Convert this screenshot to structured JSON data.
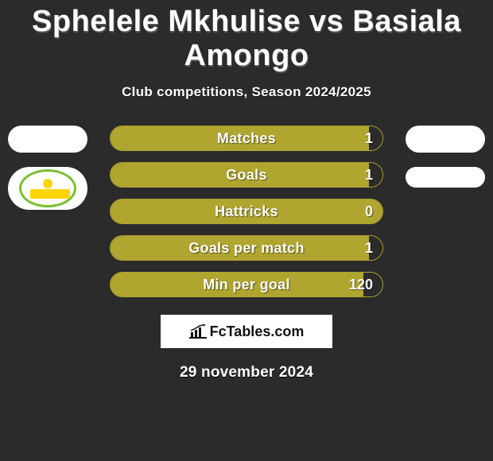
{
  "background_color": "#2b2b2b",
  "title": "Sphelele Mkhulise vs Basiala Amongo",
  "title_color": "#ffffff",
  "title_shadow": "1px 2px 0 #545454",
  "subtitle": "Club competitions, Season 2024/2025",
  "subtitle_color": "#ffffff",
  "subtitle_shadow": "0 1px 0 #000000",
  "date": "29 november 2024",
  "date_color": "#ffffff",
  "date_shadow": "0 1px 0 #000000",
  "brand": "FcTables.com",
  "brand_border_color": "#ffffff",
  "brand_bg": "#ffffff",
  "brand_text_color": "#111111",
  "left_player": {
    "avatar_color": "#ffffff",
    "club": "sundowns"
  },
  "right_player": {
    "avatar_color": "#ffffff",
    "club": "blank"
  },
  "bars": [
    {
      "label": "Matches",
      "left_value": "",
      "right_value": "1",
      "left_pct": 95,
      "right_pct": 5,
      "fill_color": "#b0a52f",
      "empty_color": "#2b2b2b",
      "border_color": "#b0a52f"
    },
    {
      "label": "Goals",
      "left_value": "",
      "right_value": "1",
      "left_pct": 95,
      "right_pct": 5,
      "fill_color": "#b0a52f",
      "empty_color": "#2b2b2b",
      "border_color": "#b0a52f"
    },
    {
      "label": "Hattricks",
      "left_value": "",
      "right_value": "0",
      "left_pct": 100,
      "right_pct": 0,
      "fill_color": "#b0a52f",
      "empty_color": "#2b2b2b",
      "border_color": "#b0a52f"
    },
    {
      "label": "Goals per match",
      "left_value": "",
      "right_value": "1",
      "left_pct": 95,
      "right_pct": 5,
      "fill_color": "#b0a52f",
      "empty_color": "#2b2b2b",
      "border_color": "#b0a52f"
    },
    {
      "label": "Min per goal",
      "left_value": "",
      "right_value": "120",
      "left_pct": 93,
      "right_pct": 7,
      "fill_color": "#b0a52f",
      "empty_color": "#2b2b2b",
      "border_color": "#b0a52f"
    }
  ]
}
